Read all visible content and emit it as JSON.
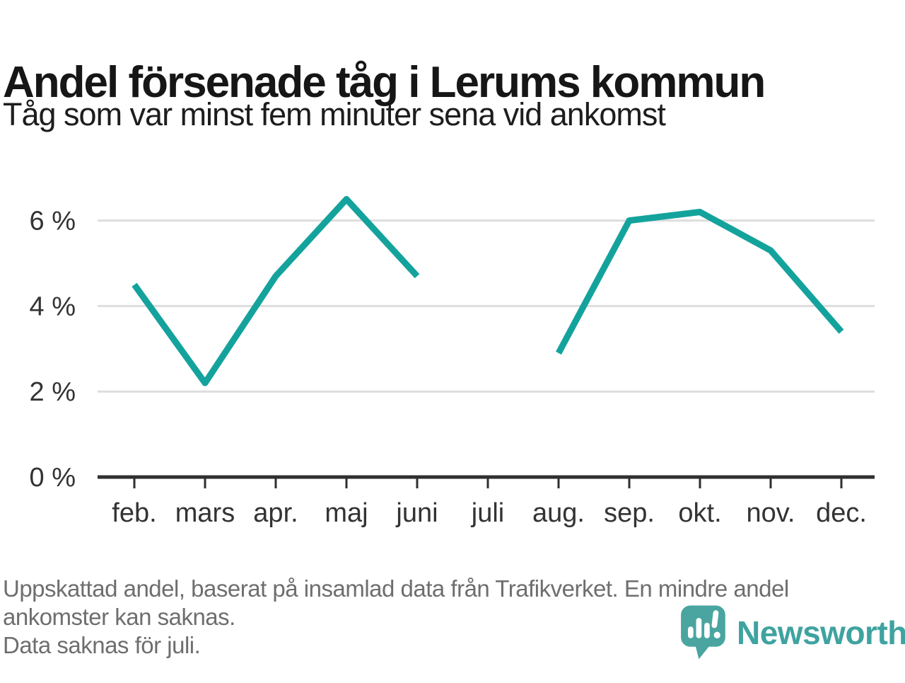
{
  "header": {
    "title": "Andel försenade tåg i Lerums kommun",
    "subtitle": "Tåg som var minst fem minuter sena vid ankomst"
  },
  "chart_data": {
    "type": "line",
    "categories": [
      "feb.",
      "mars",
      "apr.",
      "maj",
      "juni",
      "juli",
      "aug.",
      "sep.",
      "okt.",
      "nov.",
      "dec."
    ],
    "values": [
      4.5,
      2.2,
      4.7,
      6.5,
      4.7,
      null,
      2.9,
      6.0,
      6.2,
      5.3,
      3.4
    ],
    "title": "Andel försenade tåg i Lerums kommun",
    "subtitle": "Tåg som var minst fem minuter sena vid ankomst",
    "xlabel": "",
    "ylabel": "",
    "yticks": [
      0,
      2,
      4,
      6
    ],
    "ytick_labels": [
      "0 %",
      "2 %",
      "4 %",
      "6 %"
    ],
    "ylim": [
      0,
      7
    ],
    "grid": "horizontal-only",
    "legend": "none",
    "missing_data_months": [
      "juli"
    ]
  },
  "footer": {
    "note_lines": [
      "Uppskattad andel, baserat på insamlad data från Trafikverket. En mindre andel",
      "ankomster kan saknas.",
      "Data saknas för juli."
    ],
    "brand": "Newsworthy"
  },
  "colors": {
    "line": "#14a39c",
    "grid": "#dddddd",
    "axis": "#2f2f2f",
    "tick_label": "#333333",
    "title": "#161616",
    "note": "#6e6e6e",
    "brand": "#3fa3a0",
    "background": "#ffffff"
  }
}
